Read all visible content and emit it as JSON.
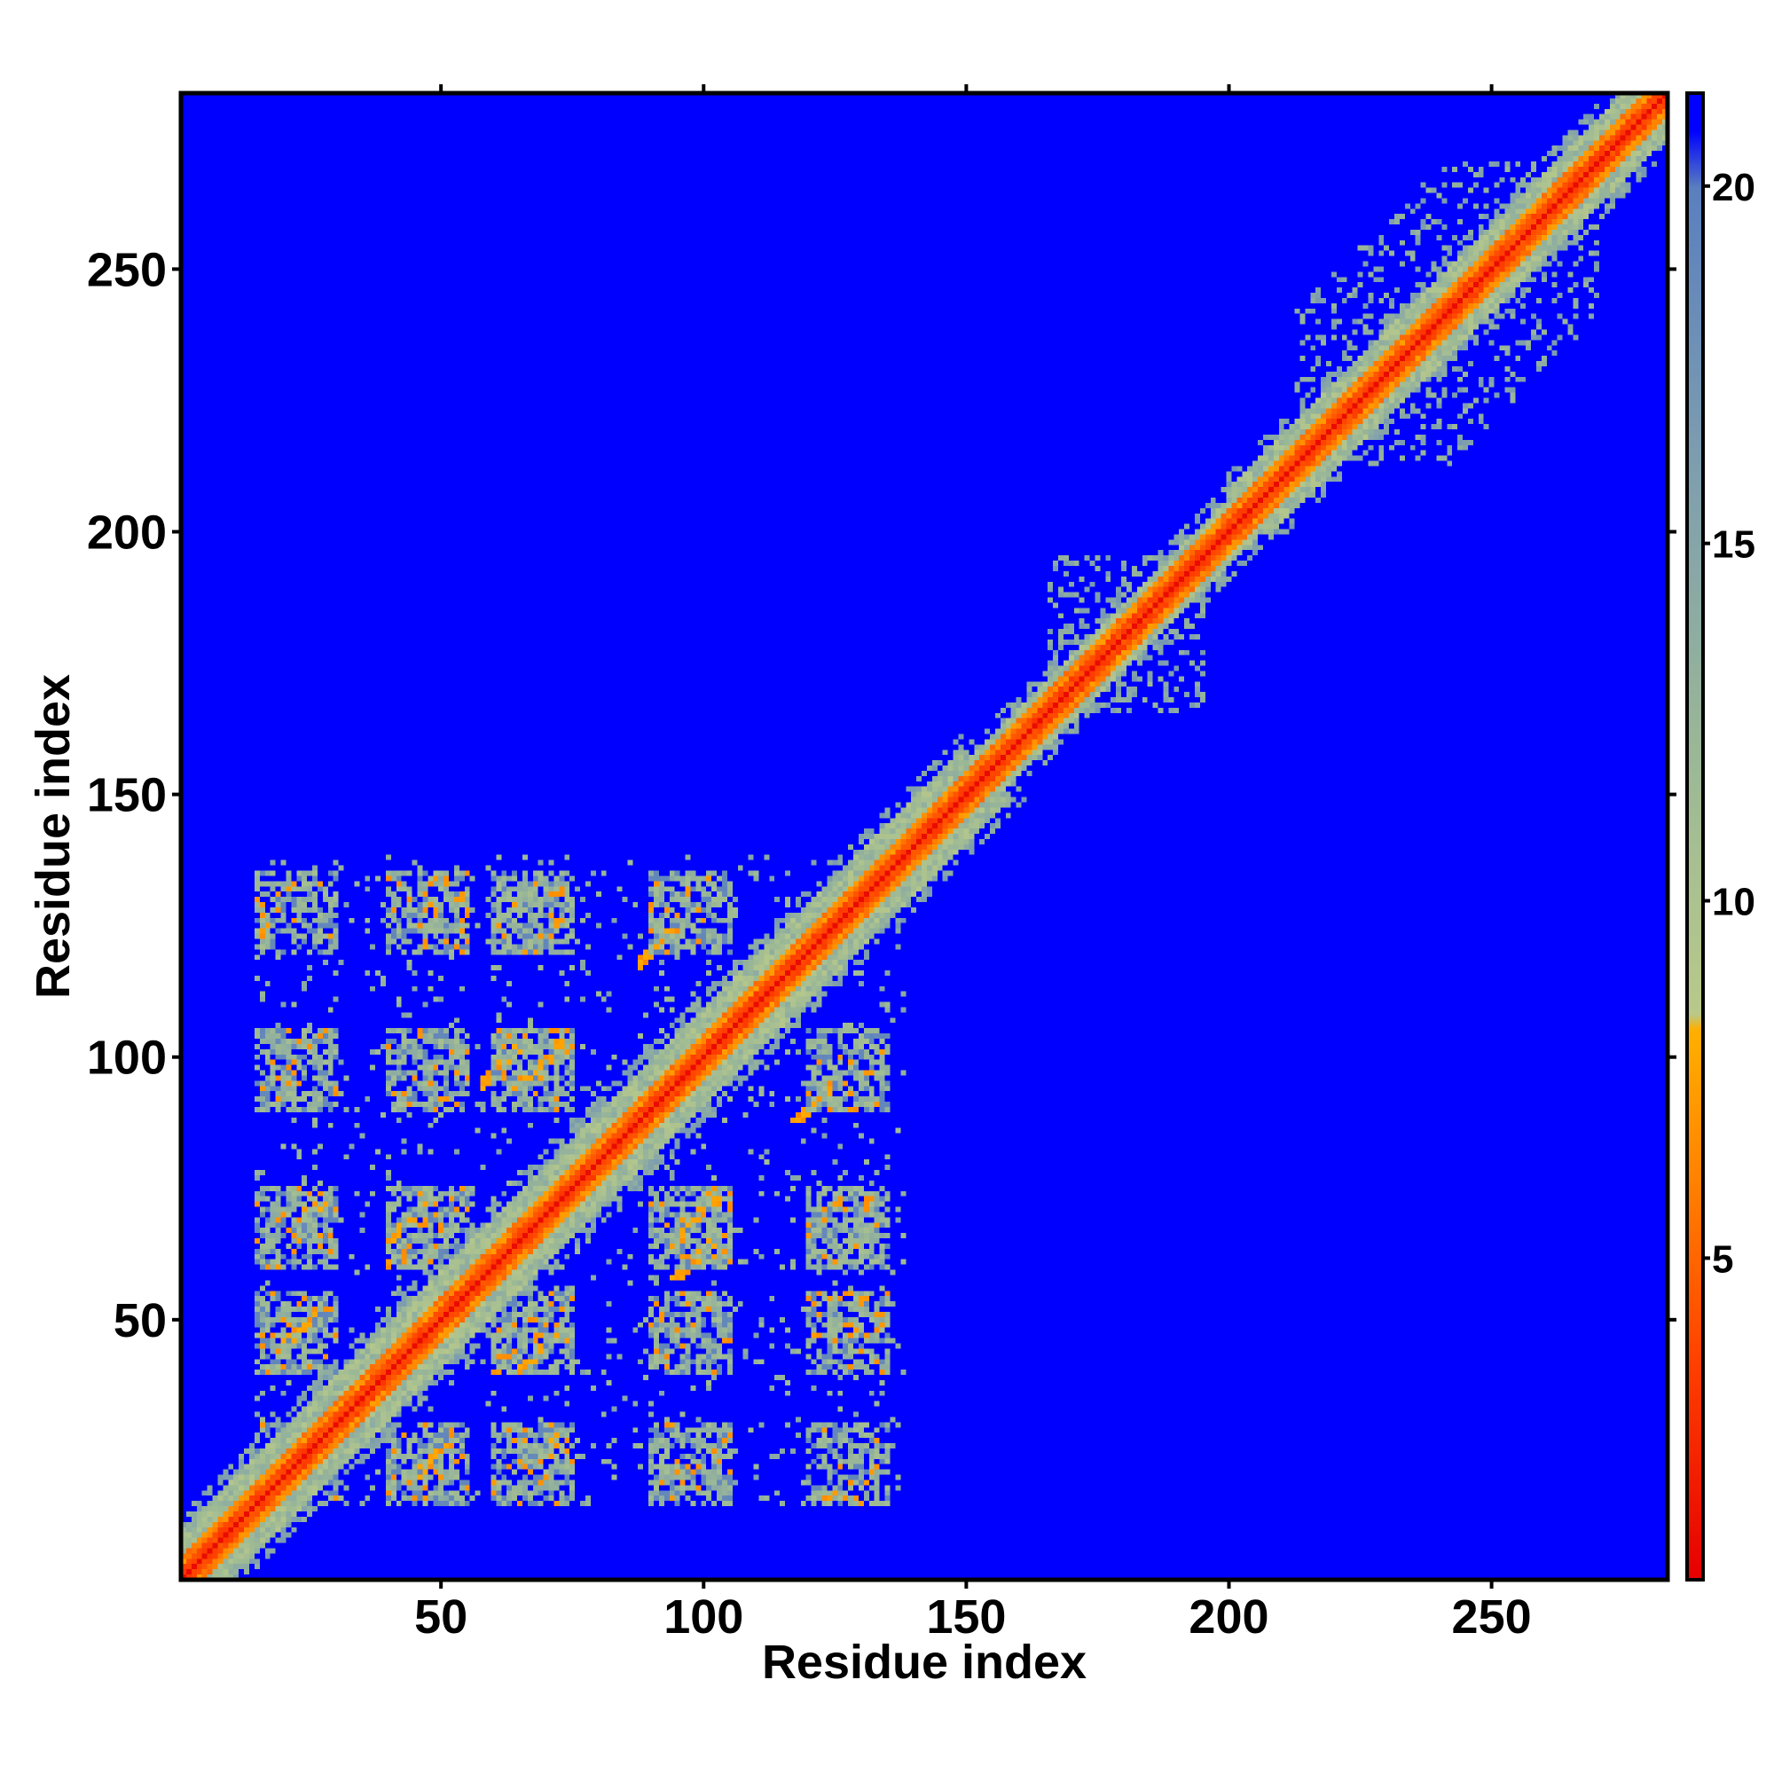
{
  "chart_data": {
    "type": "heatmap",
    "title": "",
    "xlabel": "Residue index",
    "ylabel": "Residue index",
    "n_residues": 283,
    "xlim": [
      1,
      283
    ],
    "ylim": [
      1,
      283
    ],
    "x_ticks": [
      50,
      100,
      150,
      200,
      250
    ],
    "y_ticks": [
      50,
      100,
      150,
      200,
      250
    ],
    "colorbar": {
      "range": [
        0.5,
        21.3
      ],
      "ticks": [
        5,
        10,
        15,
        20
      ],
      "stops": [
        {
          "value": 0.5,
          "color": "#e60000"
        },
        {
          "value": 3.5,
          "color": "#ff4000"
        },
        {
          "value": 6.0,
          "color": "#ff8000"
        },
        {
          "value": 8.2,
          "color": "#ffb000"
        },
        {
          "value": 8.4,
          "color": "#b9c98a"
        },
        {
          "value": 12.0,
          "color": "#9bb896"
        },
        {
          "value": 16.0,
          "color": "#7f9fae"
        },
        {
          "value": 20.0,
          "color": "#5a7fbf"
        },
        {
          "value": 20.8,
          "color": "#0000ff"
        },
        {
          "value": 21.3,
          "color": "#0000ff"
        }
      ]
    },
    "background_value": 21,
    "grid": false,
    "matrix": "symmetric residue-residue distance map; colored contact regions: diagonal band 1-283; off-diagonal blocks among residues 1-140; smaller clusters near residues 175-190 and 210-260"
  }
}
